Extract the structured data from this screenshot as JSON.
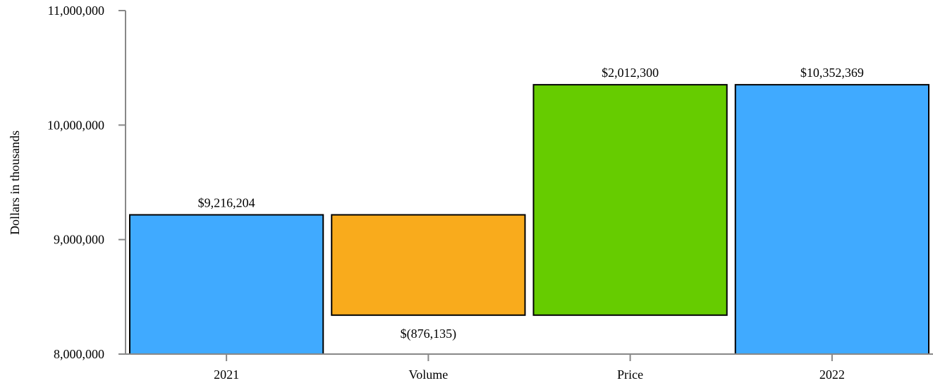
{
  "chart_data": {
    "type": "bar",
    "subtype": "waterfall",
    "categories": [
      "2021",
      "Volume",
      "Price",
      "2022"
    ],
    "series": [
      {
        "values": [
          9216204,
          -876135,
          2012300,
          10352369
        ],
        "value_labels": [
          "$9,216,204",
          "$(876,135)",
          "$2,012,300",
          "$10,352,369"
        ],
        "bar_kind": [
          "total",
          "delta",
          "delta",
          "total"
        ],
        "colors": [
          "#40aaff",
          "#f9ab1c",
          "#66cc00",
          "#40aaff"
        ]
      }
    ],
    "title": "",
    "xlabel": "",
    "ylabel": "Dollars in thousands",
    "ylim": [
      8000000,
      11000000
    ],
    "yticks": [
      8000000,
      9000000,
      10000000,
      11000000
    ],
    "ytick_labels": [
      "8,000,000",
      "9,000,000",
      "10,000,000",
      "11,000,000"
    ],
    "grid": false,
    "legend": "none"
  }
}
